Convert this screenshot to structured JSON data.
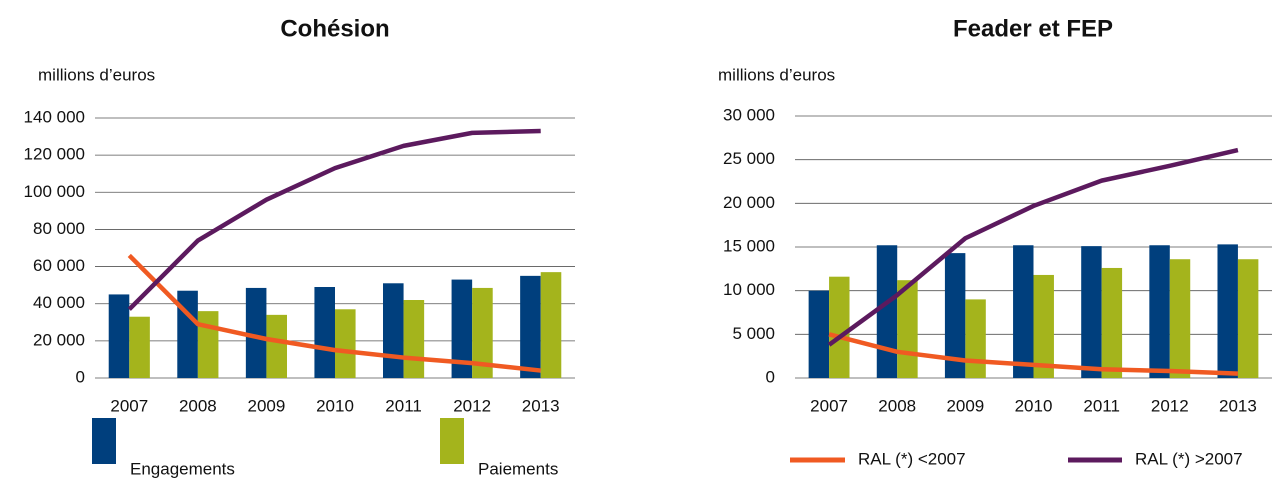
{
  "chart_data": [
    {
      "type": "bar",
      "title": "Cohésion",
      "y_label": "millions d’euros",
      "categories": [
        "2007",
        "2008",
        "2009",
        "2010",
        "2011",
        "2012",
        "2013"
      ],
      "ylim": [
        0,
        140000
      ],
      "yticks": [
        0,
        {
          "value": 20000,
          "label": "20 000"
        },
        {
          "value": 40000,
          "label": "40 000"
        },
        {
          "value": 60000,
          "label": "60 000"
        },
        {
          "value": 80000,
          "label": "80 000"
        },
        {
          "value": 100000,
          "label": "100 000"
        },
        {
          "value": 120000,
          "label": "120 000"
        },
        {
          "value": 140000,
          "label": "140 000"
        }
      ],
      "grid": true,
      "series": [
        {
          "name": "Engagements",
          "color": "#003f7d",
          "values": [
            45000,
            47000,
            48500,
            49000,
            51000,
            53000,
            55000
          ]
        },
        {
          "name": "Paiements",
          "color": "#a4b41c",
          "values": [
            33000,
            36000,
            34000,
            37000,
            42000,
            48500,
            57000
          ]
        },
        {
          "name": "RAL (*) <2007",
          "type": "line",
          "color": "#f05a22",
          "values": [
            66000,
            29000,
            21000,
            15000,
            11000,
            8000,
            4000
          ]
        },
        {
          "name": "RAL (*) >2007",
          "type": "line",
          "color": "#5c1a5e",
          "values": [
            37000,
            74000,
            96000,
            113000,
            125000,
            132000,
            133000
          ]
        }
      ]
    },
    {
      "type": "bar",
      "title": "Feader et FEP",
      "y_label": "millions d’euros",
      "categories": [
        "2007",
        "2008",
        "2009",
        "2010",
        "2011",
        "2012",
        "2013"
      ],
      "ylim": [
        0,
        30000
      ],
      "yticks": [
        0,
        {
          "value": 5000,
          "label": "5 000"
        },
        {
          "value": 10000,
          "label": "10 000"
        },
        {
          "value": 15000,
          "label": "15 000"
        },
        {
          "value": 20000,
          "label": "20 000"
        },
        {
          "value": 25000,
          "label": "25 000"
        },
        {
          "value": 30000,
          "label": "30 000"
        }
      ],
      "grid": true,
      "series": [
        {
          "name": "Engagements",
          "color": "#003f7d",
          "values": [
            10000,
            15200,
            14300,
            15200,
            15100,
            15200,
            15300
          ]
        },
        {
          "name": "Paiements",
          "color": "#a4b41c",
          "values": [
            11600,
            11200,
            9000,
            11800,
            12600,
            13600,
            13600
          ]
        },
        {
          "name": "RAL (*) <2007",
          "type": "line",
          "color": "#f05a22",
          "values": [
            5000,
            3000,
            2000,
            1500,
            1000,
            800,
            500
          ]
        },
        {
          "name": "RAL (*) >2007",
          "type": "line",
          "color": "#5c1a5e",
          "values": [
            3800,
            9500,
            16000,
            19700,
            22600,
            24300,
            26100
          ]
        }
      ]
    }
  ]
}
